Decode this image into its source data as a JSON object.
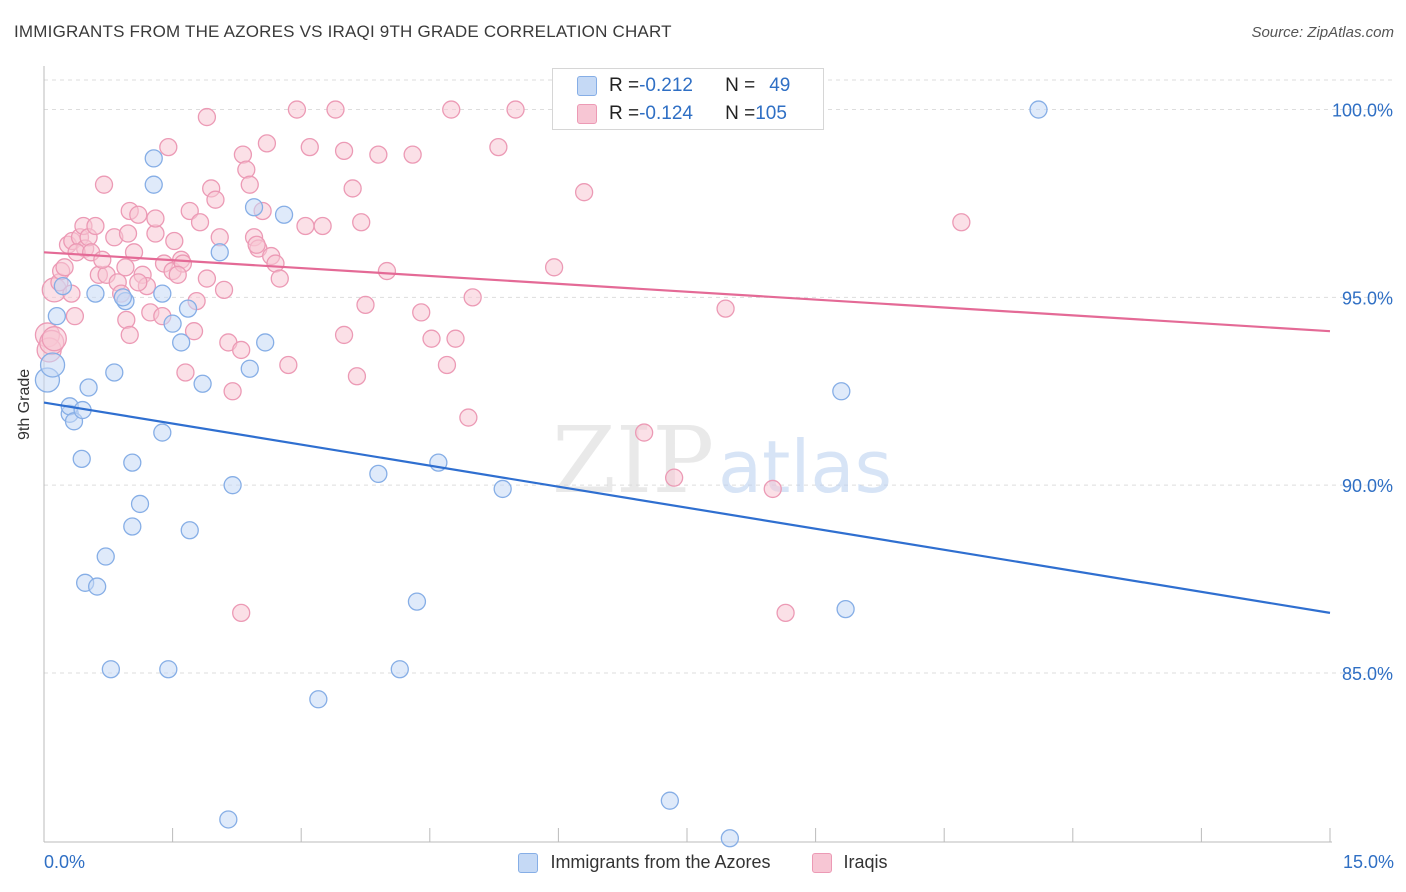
{
  "title": "IMMIGRANTS FROM THE AZORES VS IRAQI 9TH GRADE CORRELATION CHART",
  "source": "Source: ZipAtlas.com",
  "watermark": {
    "zip": "ZIP",
    "atlas": "atlas"
  },
  "stats": {
    "row1": {
      "r_label": "R = ",
      "r_value": "-0.212",
      "n_label": "N = ",
      "n_value": "49"
    },
    "row2": {
      "r_label": "R = ",
      "r_value": "-0.124",
      "n_label": "N = ",
      "n_value": "105"
    }
  },
  "legend": {
    "series1": "Immigrants from the Azores",
    "series2": "Iraqis"
  },
  "x_axis_labels": {
    "min": "0.0%",
    "max": "15.0%"
  },
  "colors": {
    "blue_fill": "#c5d9f5",
    "blue_stroke": "#86aee6",
    "blue_line": "#2f6fd0",
    "pink_fill": "#f7c6d4",
    "pink_stroke": "#ec9ab5",
    "pink_line": "#e46a96",
    "axis_text": "#2f6fc4",
    "grid": "#dddddd"
  },
  "chart_data": {
    "type": "scatter",
    "title": "IMMIGRANTS FROM THE AZORES VS IRAQI 9TH GRADE CORRELATION CHART",
    "xlabel": "",
    "ylabel": "9th Grade",
    "xlim": [
      0,
      15
    ],
    "ylim": [
      80.5,
      101.0
    ],
    "y_ticks": [
      85.0,
      90.0,
      95.0,
      100.0
    ],
    "y_tick_labels": [
      "85.0%",
      "90.0%",
      "95.0%",
      "100.0%"
    ],
    "grid": true,
    "legend_position": "bottom",
    "series": [
      {
        "name": "Immigrants from the Azores",
        "color": "#86aee6",
        "trend": [
          [
            0,
            92.2
          ],
          [
            15,
            86.6
          ]
        ],
        "points": [
          [
            0.04,
            92.8
          ],
          [
            0.1,
            93.2
          ],
          [
            0.15,
            94.5
          ],
          [
            0.22,
            95.3
          ],
          [
            0.3,
            91.9
          ],
          [
            0.3,
            92.1
          ],
          [
            0.35,
            91.7
          ],
          [
            0.45,
            92.0
          ],
          [
            0.44,
            90.7
          ],
          [
            0.52,
            92.6
          ],
          [
            0.48,
            87.4
          ],
          [
            0.62,
            87.3
          ],
          [
            0.6,
            95.1
          ],
          [
            0.72,
            88.1
          ],
          [
            0.78,
            85.1
          ],
          [
            0.82,
            93.0
          ],
          [
            0.95,
            94.9
          ],
          [
            0.92,
            95.0
          ],
          [
            1.03,
            88.9
          ],
          [
            1.03,
            90.6
          ],
          [
            1.12,
            89.5
          ],
          [
            1.28,
            98.0
          ],
          [
            1.28,
            98.7
          ],
          [
            1.38,
            95.1
          ],
          [
            1.38,
            91.4
          ],
          [
            1.45,
            85.1
          ],
          [
            1.5,
            94.3
          ],
          [
            1.6,
            93.8
          ],
          [
            1.68,
            94.7
          ],
          [
            1.7,
            88.8
          ],
          [
            1.85,
            92.7
          ],
          [
            2.05,
            96.2
          ],
          [
            2.15,
            81.1
          ],
          [
            2.2,
            90.0
          ],
          [
            2.4,
            93.1
          ],
          [
            2.45,
            97.4
          ],
          [
            2.58,
            93.8
          ],
          [
            2.8,
            97.2
          ],
          [
            3.2,
            84.3
          ],
          [
            3.9,
            90.3
          ],
          [
            4.15,
            85.1
          ],
          [
            4.35,
            86.9
          ],
          [
            4.6,
            90.6
          ],
          [
            5.35,
            89.9
          ],
          [
            7.3,
            81.6
          ],
          [
            8.0,
            80.6
          ],
          [
            9.3,
            92.5
          ],
          [
            9.35,
            86.7
          ],
          [
            11.6,
            100.0
          ]
        ]
      },
      {
        "name": "Iraqis",
        "color": "#ec9ab5",
        "trend": [
          [
            0,
            96.2
          ],
          [
            15,
            94.1
          ]
        ],
        "points": [
          [
            0.04,
            94.0
          ],
          [
            0.06,
            93.6
          ],
          [
            0.09,
            93.8
          ],
          [
            0.12,
            95.2
          ],
          [
            0.12,
            93.9
          ],
          [
            0.18,
            95.4
          ],
          [
            0.2,
            95.7
          ],
          [
            0.24,
            95.8
          ],
          [
            0.28,
            96.4
          ],
          [
            0.33,
            96.5
          ],
          [
            0.36,
            94.5
          ],
          [
            0.42,
            96.6
          ],
          [
            0.46,
            96.9
          ],
          [
            0.48,
            96.3
          ],
          [
            0.52,
            96.6
          ],
          [
            0.6,
            96.9
          ],
          [
            0.64,
            95.6
          ],
          [
            0.7,
            98.0
          ],
          [
            0.73,
            95.6
          ],
          [
            0.82,
            96.6
          ],
          [
            0.86,
            95.4
          ],
          [
            0.9,
            95.1
          ],
          [
            0.95,
            95.8
          ],
          [
            0.96,
            94.4
          ],
          [
            1.0,
            97.3
          ],
          [
            1.0,
            94.0
          ],
          [
            1.05,
            96.2
          ],
          [
            1.1,
            97.2
          ],
          [
            1.15,
            95.6
          ],
          [
            1.2,
            95.3
          ],
          [
            1.24,
            94.6
          ],
          [
            1.3,
            96.7
          ],
          [
            1.3,
            97.1
          ],
          [
            1.38,
            94.5
          ],
          [
            1.4,
            95.9
          ],
          [
            1.45,
            99.0
          ],
          [
            1.5,
            95.7
          ],
          [
            1.52,
            96.5
          ],
          [
            1.6,
            96.0
          ],
          [
            1.62,
            95.9
          ],
          [
            1.65,
            93.0
          ],
          [
            1.7,
            97.3
          ],
          [
            1.75,
            94.1
          ],
          [
            1.78,
            94.9
          ],
          [
            1.82,
            97.0
          ],
          [
            1.9,
            95.5
          ],
          [
            1.9,
            99.8
          ],
          [
            1.95,
            97.9
          ],
          [
            2.0,
            97.6
          ],
          [
            2.05,
            96.6
          ],
          [
            2.1,
            95.2
          ],
          [
            2.15,
            93.8
          ],
          [
            2.2,
            92.5
          ],
          [
            2.3,
            93.6
          ],
          [
            2.32,
            98.8
          ],
          [
            2.36,
            98.4
          ],
          [
            2.4,
            98.0
          ],
          [
            2.45,
            96.6
          ],
          [
            2.5,
            96.3
          ],
          [
            2.55,
            97.3
          ],
          [
            2.6,
            99.1
          ],
          [
            2.65,
            96.1
          ],
          [
            2.7,
            95.9
          ],
          [
            2.75,
            95.5
          ],
          [
            2.85,
            93.2
          ],
          [
            2.95,
            100.0
          ],
          [
            3.05,
            96.9
          ],
          [
            3.1,
            99.0
          ],
          [
            3.25,
            96.9
          ],
          [
            3.4,
            100.0
          ],
          [
            3.5,
            98.9
          ],
          [
            3.5,
            94.0
          ],
          [
            3.6,
            97.9
          ],
          [
            3.65,
            92.9
          ],
          [
            3.7,
            97.0
          ],
          [
            3.75,
            94.8
          ],
          [
            3.9,
            98.8
          ],
          [
            4.0,
            95.7
          ],
          [
            4.3,
            98.8
          ],
          [
            4.4,
            94.6
          ],
          [
            4.52,
            93.9
          ],
          [
            4.7,
            93.2
          ],
          [
            4.75,
            100.0
          ],
          [
            4.8,
            93.9
          ],
          [
            4.95,
            91.8
          ],
          [
            5.0,
            95.0
          ],
          [
            5.3,
            99.0
          ],
          [
            5.5,
            100.0
          ],
          [
            5.95,
            95.8
          ],
          [
            6.3,
            97.8
          ],
          [
            7.0,
            91.4
          ],
          [
            7.35,
            90.2
          ],
          [
            7.95,
            94.7
          ],
          [
            8.5,
            89.9
          ],
          [
            8.65,
            86.6
          ],
          [
            10.7,
            97.0
          ],
          [
            2.3,
            86.6
          ],
          [
            0.38,
            96.2
          ],
          [
            0.55,
            96.2
          ],
          [
            0.32,
            95.1
          ],
          [
            1.1,
            95.4
          ],
          [
            2.48,
            96.4
          ],
          [
            0.98,
            96.7
          ],
          [
            1.56,
            95.6
          ],
          [
            0.68,
            96.0
          ]
        ]
      }
    ]
  }
}
